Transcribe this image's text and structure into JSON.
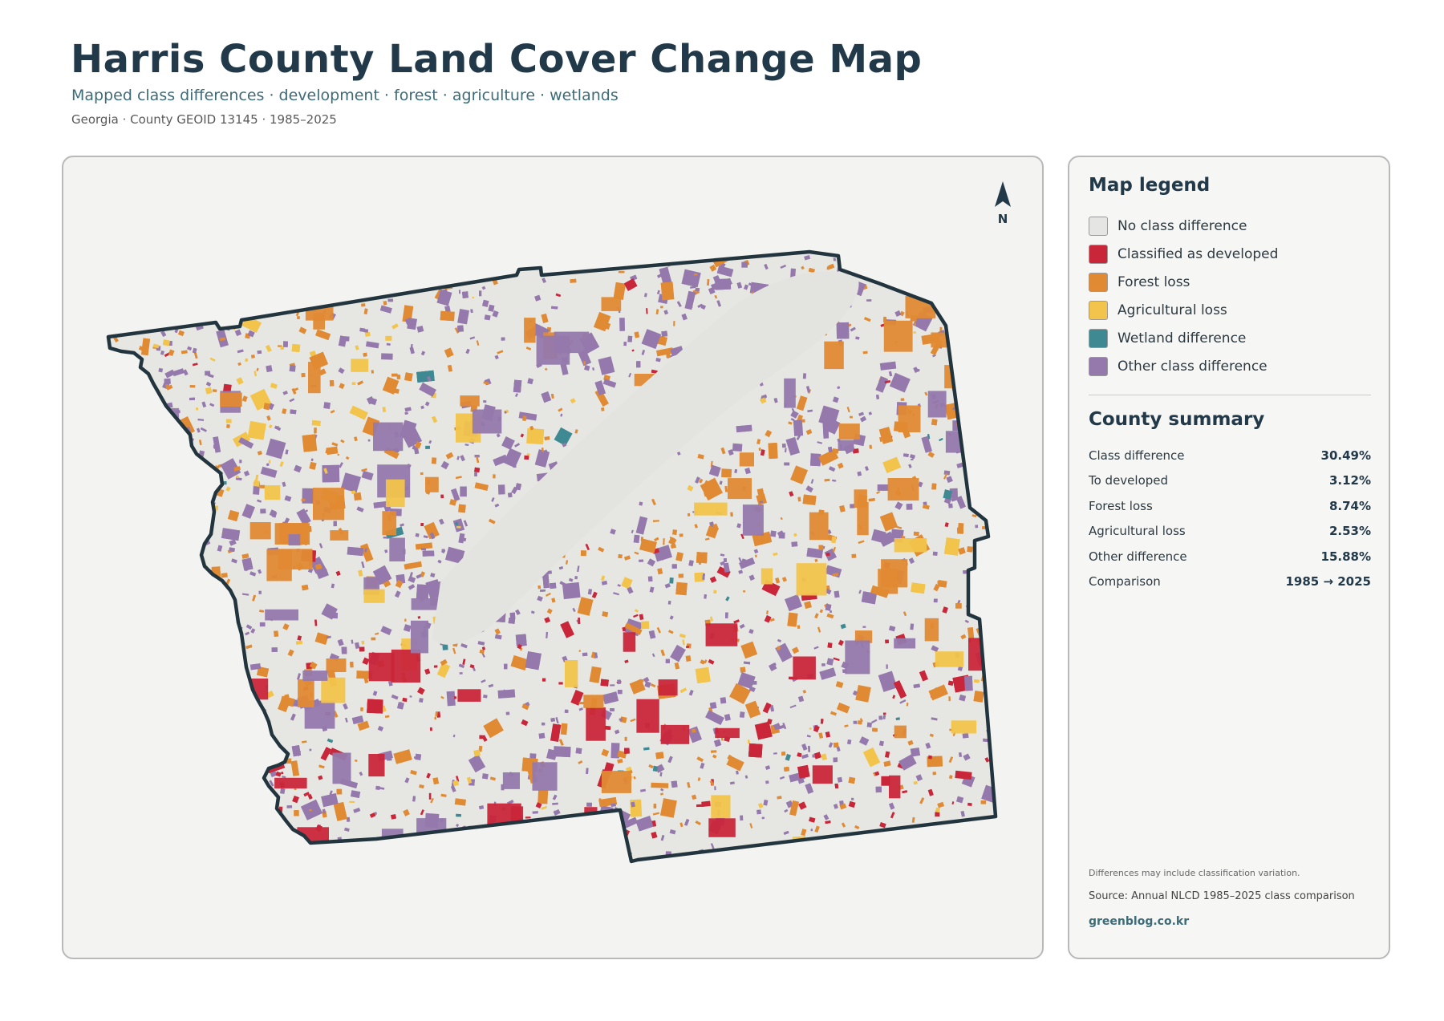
{
  "header": {
    "title": "Harris County Land Cover Change Map",
    "subtitle": "Mapped class differences · development · forest · agriculture · wetlands",
    "meta": "Georgia · County GEOID 13145 · 1985–2025"
  },
  "map": {
    "north_label": "N",
    "outline_color": "#22353f",
    "background_color": "#e6e6e3"
  },
  "legend": {
    "title": "Map legend",
    "items": [
      {
        "label": "No class difference",
        "color": "#e5e5e3"
      },
      {
        "label": "Classified as developed",
        "color": "#c9263a"
      },
      {
        "label": "Forest loss",
        "color": "#e08a33"
      },
      {
        "label": "Agricultural loss",
        "color": "#f2c44b"
      },
      {
        "label": "Wetland difference",
        "color": "#3f8a92"
      },
      {
        "label": "Other class difference",
        "color": "#9579ad"
      }
    ]
  },
  "summary": {
    "title": "County summary",
    "rows": [
      {
        "label": "Class difference",
        "value": "30.49%"
      },
      {
        "label": "To developed",
        "value": "3.12%"
      },
      {
        "label": "Forest loss",
        "value": "8.74%"
      },
      {
        "label": "Agricultural loss",
        "value": "2.53%"
      },
      {
        "label": "Other difference",
        "value": "15.88%"
      },
      {
        "label": "Comparison",
        "value": "1985 → 2025"
      }
    ]
  },
  "footer": {
    "note": "Differences may include classification variation.",
    "source": "Source: Annual NLCD 1985–2025 class comparison",
    "site": "greenblog.co.kr"
  }
}
